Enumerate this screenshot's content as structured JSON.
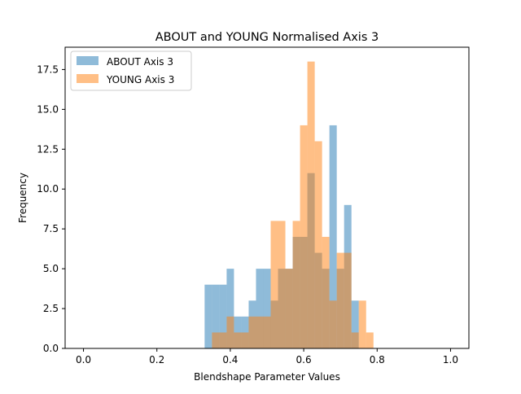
{
  "chart_data": {
    "type": "bar",
    "title": "ABOUT and YOUNG Normalised Axis 3",
    "xlabel": "Blendshape Parameter Values",
    "ylabel": "Frequency",
    "xlim": [
      -0.05,
      1.05
    ],
    "ylim": [
      0,
      18.9
    ],
    "xticks": [
      "0.0",
      "0.2",
      "0.4",
      "0.6",
      "0.8",
      "1.0"
    ],
    "xtick_values": [
      0.0,
      0.2,
      0.4,
      0.6,
      0.8,
      1.0
    ],
    "yticks": [
      "0.0",
      "2.5",
      "5.0",
      "7.5",
      "10.0",
      "12.5",
      "15.0",
      "17.5"
    ],
    "ytick_values": [
      0.0,
      2.5,
      5.0,
      7.5,
      10.0,
      12.5,
      15.0,
      17.5
    ],
    "legend": {
      "position": "top-left"
    },
    "grid": false,
    "bin_width": 0.02,
    "series": [
      {
        "name": "ABOUT Axis 3",
        "color": "#1f77b4",
        "alpha": 0.5,
        "bins": [
          {
            "x": 0.33,
            "value": 4
          },
          {
            "x": 0.35,
            "value": 4
          },
          {
            "x": 0.37,
            "value": 4
          },
          {
            "x": 0.39,
            "value": 5
          },
          {
            "x": 0.41,
            "value": 2
          },
          {
            "x": 0.43,
            "value": 2
          },
          {
            "x": 0.45,
            "value": 3
          },
          {
            "x": 0.47,
            "value": 5
          },
          {
            "x": 0.49,
            "value": 5
          },
          {
            "x": 0.51,
            "value": 3
          },
          {
            "x": 0.53,
            "value": 5
          },
          {
            "x": 0.55,
            "value": 5
          },
          {
            "x": 0.57,
            "value": 7
          },
          {
            "x": 0.59,
            "value": 7
          },
          {
            "x": 0.61,
            "value": 11
          },
          {
            "x": 0.63,
            "value": 6
          },
          {
            "x": 0.65,
            "value": 5
          },
          {
            "x": 0.67,
            "value": 14
          },
          {
            "x": 0.69,
            "value": 5
          },
          {
            "x": 0.71,
            "value": 9
          },
          {
            "x": 0.73,
            "value": 3
          },
          {
            "x": 0.75,
            "value": 0
          }
        ]
      },
      {
        "name": "YOUNG Axis 3",
        "color": "#ff7f0e",
        "alpha": 0.5,
        "bins": [
          {
            "x": 0.33,
            "value": 0
          },
          {
            "x": 0.35,
            "value": 1
          },
          {
            "x": 0.37,
            "value": 1
          },
          {
            "x": 0.39,
            "value": 2
          },
          {
            "x": 0.41,
            "value": 1
          },
          {
            "x": 0.43,
            "value": 1
          },
          {
            "x": 0.45,
            "value": 2
          },
          {
            "x": 0.47,
            "value": 2
          },
          {
            "x": 0.49,
            "value": 2
          },
          {
            "x": 0.51,
            "value": 8
          },
          {
            "x": 0.53,
            "value": 8
          },
          {
            "x": 0.55,
            "value": 5
          },
          {
            "x": 0.57,
            "value": 8
          },
          {
            "x": 0.59,
            "value": 14
          },
          {
            "x": 0.61,
            "value": 18
          },
          {
            "x": 0.63,
            "value": 13
          },
          {
            "x": 0.65,
            "value": 7
          },
          {
            "x": 0.67,
            "value": 3
          },
          {
            "x": 0.69,
            "value": 6
          },
          {
            "x": 0.71,
            "value": 6
          },
          {
            "x": 0.73,
            "value": 1
          },
          {
            "x": 0.75,
            "value": 3
          },
          {
            "x": 0.77,
            "value": 1
          }
        ]
      }
    ]
  }
}
